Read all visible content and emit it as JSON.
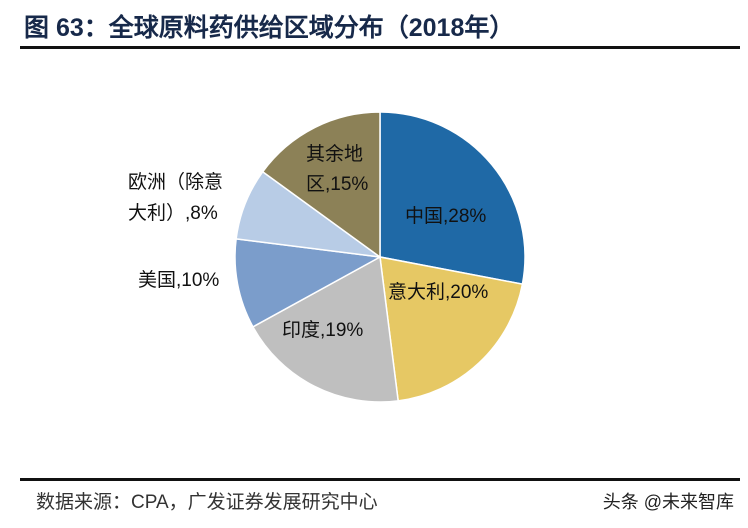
{
  "title": "图 63：全球原料药供给区域分布（2018年）",
  "footer": "数据来源：CPA，广发证券发展研究中心",
  "watermark": "头条 @未来智库",
  "chart_data": {
    "type": "pie",
    "title": "图 63：全球原料药供给区域分布（2018年）",
    "start_angle": "12 o'clock, clockwise",
    "slices": [
      {
        "name": "中国",
        "value": 28,
        "label": "中国,28%",
        "color": "#1f69a6"
      },
      {
        "name": "意大利",
        "value": 20,
        "label": "意大利,20%",
        "color": "#e6c864"
      },
      {
        "name": "印度",
        "value": 19,
        "label": "印度,19%",
        "color": "#bfbfbf"
      },
      {
        "name": "美国",
        "value": 10,
        "label": "美国,10%",
        "color": "#7b9dcb"
      },
      {
        "name": "欧洲（除意大利）",
        "value": 8,
        "label_lines": [
          "欧洲（除意",
          "大利）,8%"
        ],
        "color": "#b8cce6"
      },
      {
        "name": "其余地区",
        "value": 15,
        "label_lines": [
          "其余地",
          "区,15%"
        ],
        "color": "#8c8157"
      }
    ]
  }
}
